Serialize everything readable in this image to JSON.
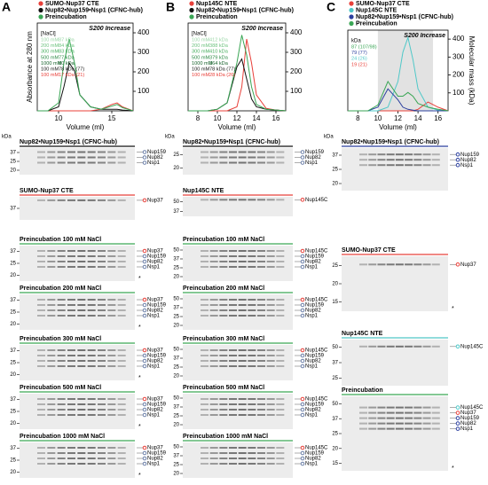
{
  "panel_labels": [
    "A",
    "B",
    "C"
  ],
  "chart_data": [
    {
      "type": "line",
      "xlabel": "Volume (ml)",
      "ylabel": "Absorbance at 280 nm",
      "column_label": "S200 Increase",
      "x": [
        8,
        9,
        10,
        10.5,
        11,
        11.5,
        12,
        13,
        14,
        15,
        15.5,
        16,
        17
      ],
      "xlim": [
        8,
        17
      ],
      "xticks": [
        10,
        15
      ],
      "ylim": [
        0,
        1.1
      ],
      "y2lim": [
        0,
        450
      ],
      "y2ticks": [
        100,
        200,
        300,
        400
      ],
      "series": [
        {
          "name": "SUMO-Nup37 CTE",
          "color": "#e8403a",
          "values": [
            0,
            0,
            0,
            0,
            0,
            0,
            0,
            0,
            0.02,
            0.08,
            0.1,
            0.05,
            0
          ]
        },
        {
          "name": "Nup82•Nup159•Nsp1 (CFNC-hub)",
          "color": "#111111",
          "values": [
            0,
            0,
            0.05,
            0.3,
            0.6,
            0.5,
            0.2,
            0.05,
            0.02,
            0.02,
            0.02,
            0.01,
            0
          ]
        },
        {
          "name": "Preincubation",
          "color": "#3aa655",
          "values": [
            0,
            0,
            0.1,
            0.6,
            0.9,
            0.6,
            0.2,
            0.05,
            0.02,
            0.06,
            0.08,
            0.04,
            0
          ]
        }
      ],
      "inset_header": "[NaCl]",
      "inset_rows": [
        {
          "salt": "100 mM",
          "mass": "87 kDa",
          "color": "#9ad6a6"
        },
        {
          "salt": "200 mM",
          "mass": "84 kDa",
          "color": "#6cc27e"
        },
        {
          "salt": "300 mM",
          "mass": "83 kDa",
          "color": "#45ad5c"
        },
        {
          "salt": "500 mM",
          "mass": "77 kDa",
          "color": "#2a8a43"
        },
        {
          "salt": "1000 mM",
          "mass": "80 kDa",
          "color": "#17622c"
        },
        {
          "salt": "100 mM",
          "mass": "78 kDa (77)",
          "color": "#111111"
        },
        {
          "salt": "100 mM",
          "mass": "17 kDa (21)",
          "color": "#e8403a"
        }
      ]
    },
    {
      "type": "line",
      "xlabel": "Volume (ml)",
      "column_label": "S200 Increase",
      "x": [
        7,
        8,
        9,
        10,
        11,
        12,
        12.5,
        13,
        13.5,
        14,
        15,
        16,
        17
      ],
      "xlim": [
        7,
        17
      ],
      "xticks": [
        8,
        10,
        12,
        14,
        16
      ],
      "ylim": [
        0,
        1.1
      ],
      "y2lim": [
        0,
        450
      ],
      "y2ticks": [
        100,
        200,
        300,
        400
      ],
      "series": [
        {
          "name": "Nup145C NTE",
          "color": "#e8403a",
          "values": [
            0,
            0,
            0,
            0,
            0,
            0.05,
            0.3,
            0.9,
            0.6,
            0.2,
            0.03,
            0.01,
            0
          ]
        },
        {
          "name": "Nup82•Nup159•Nsp1 (CFNC-hub)",
          "color": "#111111",
          "values": [
            0,
            0,
            0,
            0.02,
            0.1,
            0.55,
            0.65,
            0.4,
            0.15,
            0.05,
            0.02,
            0.01,
            0
          ]
        },
        {
          "name": "Preincubation",
          "color": "#3aa655",
          "values": [
            0,
            0,
            0,
            0.02,
            0.1,
            0.6,
            0.95,
            0.7,
            0.3,
            0.08,
            0.02,
            0.01,
            0
          ]
        }
      ],
      "inset_header": "[NaCl]",
      "inset_rows": [
        {
          "salt": "100 mM",
          "mass": "412 kDa",
          "color": "#9ad6a6"
        },
        {
          "salt": "200 mM",
          "mass": "388 kDa",
          "color": "#6cc27e"
        },
        {
          "salt": "300 mM",
          "mass": "410 kDa",
          "color": "#45ad5c"
        },
        {
          "salt": "500 mM",
          "mass": "379 kDa",
          "color": "#2a8a43"
        },
        {
          "salt": "1000 mM",
          "mass": "364 kDa",
          "color": "#17622c"
        },
        {
          "salt": "100 mM",
          "mass": "78 kDa (77)",
          "color": "#111111"
        },
        {
          "salt": "100 mM",
          "mass": "28 kDa (26)",
          "color": "#e8403a"
        }
      ]
    },
    {
      "type": "line",
      "xlabel": "Volume (ml)",
      "y2label": "Molecular mass (kDa)",
      "column_label": "S200 Increase",
      "x": [
        7,
        8,
        9,
        10,
        11,
        12,
        12.5,
        13,
        13.5,
        14,
        15,
        16,
        17
      ],
      "xlim": [
        7,
        17
      ],
      "xticks": [
        8,
        10,
        12,
        14,
        16
      ],
      "ylim": [
        0,
        1.1
      ],
      "y2lim": [
        0,
        450
      ],
      "y2ticks": [
        100,
        200,
        300,
        400
      ],
      "highlight_range": [
        10,
        15.5
      ],
      "series": [
        {
          "name": "SUMO-Nup37 CTE",
          "color": "#e8403a",
          "values": [
            0,
            0,
            0,
            0,
            0,
            0,
            0,
            0,
            0,
            0.02,
            0.12,
            0.05,
            0
          ]
        },
        {
          "name": "Nup145C NTE",
          "color": "#4fc8c8",
          "values": [
            0,
            0,
            0,
            0,
            0.05,
            0.4,
            0.8,
            1.0,
            0.7,
            0.3,
            0.05,
            0.01,
            0
          ]
        },
        {
          "name": "Nup82•Nup159•Nsp1 (CFNC-hub)",
          "color": "#2b3f9e",
          "values": [
            0,
            0,
            0,
            0.05,
            0.3,
            0.15,
            0.05,
            0.02,
            0.01,
            0,
            0,
            0,
            0
          ]
        },
        {
          "name": "Preincubation",
          "color": "#3aa655",
          "values": [
            0,
            0,
            0,
            0.08,
            0.4,
            0.2,
            0.2,
            0.25,
            0.2,
            0.1,
            0.05,
            0.02,
            0
          ]
        }
      ],
      "inset_header": "kDa",
      "inset_rows": [
        {
          "mass": "87 (107/98)",
          "color": "#3aa655"
        },
        {
          "mass": "79 (77)",
          "color": "#2b3f9e"
        },
        {
          "mass": "24 (26)",
          "color": "#4fc8c8"
        },
        {
          "mass": "19 (21)",
          "color": "#e8403a"
        }
      ]
    }
  ],
  "gels": [
    {
      "unit": "kDa",
      "items": [
        {
          "title": "Nup82•Nup159•Nsp1 (CFNC-hub)",
          "line_color": "#111111",
          "markers": [
            37,
            25,
            20
          ],
          "bands": [
            {
              "label": "Nup159",
              "color": "#6b7fa8"
            },
            {
              "label": "Nup82",
              "color": "#6b7fa8"
            },
            {
              "label": "Nsp1",
              "color": "#6b7fa8"
            }
          ]
        },
        {
          "title": "SUMO-Nup37 CTE",
          "line_color": "#e8403a",
          "markers": [
            37
          ],
          "bands": [
            {
              "label": "Nup37",
              "color": "#e8403a"
            }
          ]
        },
        {
          "title": "Preincubation 100 mM NaCl",
          "line_color": "#3aa655",
          "markers": [
            37,
            25,
            20
          ],
          "bands": [
            {
              "label": "Nup37",
              "color": "#e8403a"
            },
            {
              "label": "Nup159",
              "color": "#6b7fa8"
            },
            {
              "label": "Nup82",
              "color": "#6b7fa8"
            },
            {
              "label": "Nsp1",
              "color": "#6b7fa8"
            }
          ],
          "note": "*"
        },
        {
          "title": "Preincubation 200 mM NaCl",
          "line_color": "#3aa655",
          "markers": [
            37,
            25,
            20
          ],
          "bands": [
            {
              "label": "Nup37",
              "color": "#e8403a"
            },
            {
              "label": "Nup159",
              "color": "#6b7fa8"
            },
            {
              "label": "Nup82",
              "color": "#6b7fa8"
            },
            {
              "label": "Nsp1",
              "color": "#6b7fa8"
            }
          ],
          "note": "*"
        },
        {
          "title": "Preincubation 300 mM NaCl",
          "line_color": "#3aa655",
          "markers": [
            37,
            25,
            20
          ],
          "bands": [
            {
              "label": "Nup37",
              "color": "#e8403a"
            },
            {
              "label": "Nup159",
              "color": "#6b7fa8"
            },
            {
              "label": "Nup82",
              "color": "#6b7fa8"
            },
            {
              "label": "Nsp1",
              "color": "#6b7fa8"
            }
          ],
          "note": "*"
        },
        {
          "title": "Preincubation 500 mM NaCl",
          "line_color": "#3aa655",
          "markers": [
            37,
            25,
            20
          ],
          "bands": [
            {
              "label": "Nup37",
              "color": "#e8403a"
            },
            {
              "label": "Nup159",
              "color": "#6b7fa8"
            },
            {
              "label": "Nup82",
              "color": "#6b7fa8"
            },
            {
              "label": "Nsp1",
              "color": "#6b7fa8"
            }
          ],
          "note": "*"
        },
        {
          "title": "Preincubation 1000 mM NaCl",
          "line_color": "#3aa655",
          "markers": [
            37,
            25,
            20
          ],
          "bands": [
            {
              "label": "Nup37",
              "color": "#e8403a"
            },
            {
              "label": "Nup159",
              "color": "#6b7fa8"
            },
            {
              "label": "Nup82",
              "color": "#6b7fa8"
            },
            {
              "label": "Nsp1",
              "color": "#6b7fa8"
            }
          ],
          "note": "*"
        }
      ]
    },
    {
      "unit": "kDa",
      "items": [
        {
          "title": "Nup82•Nup159•Nsp1 (CFNC-hub)",
          "line_color": "#111111",
          "markers": [
            25,
            20
          ],
          "bands": [
            {
              "label": "Nup159",
              "color": "#6b7fa8"
            },
            {
              "label": "Nup82",
              "color": "#6b7fa8"
            },
            {
              "label": "Nsp1",
              "color": "#6b7fa8"
            }
          ]
        },
        {
          "title": "Nup145C NTE",
          "line_color": "#e8403a",
          "markers": [
            50,
            37
          ],
          "bands": [
            {
              "label": "Nup145C",
              "color": "#e8403a"
            }
          ]
        },
        {
          "title": "Preincubation 100 mM NaCl",
          "line_color": "#3aa655",
          "markers": [
            50,
            37,
            25,
            20
          ],
          "bands": [
            {
              "label": "Nup145C",
              "color": "#e8403a"
            },
            {
              "label": "Nup159",
              "color": "#6b7fa8"
            },
            {
              "label": "Nup82",
              "color": "#6b7fa8"
            },
            {
              "label": "Nsp1",
              "color": "#6b7fa8"
            }
          ]
        },
        {
          "title": "Preincubation 200 mM NaCl",
          "line_color": "#3aa655",
          "markers": [
            50,
            37,
            25,
            20
          ],
          "bands": [
            {
              "label": "Nup145C",
              "color": "#e8403a"
            },
            {
              "label": "Nup159",
              "color": "#6b7fa8"
            },
            {
              "label": "Nup82",
              "color": "#6b7fa8"
            },
            {
              "label": "Nsp1",
              "color": "#6b7fa8"
            }
          ]
        },
        {
          "title": "Preincubation 300 mM NaCl",
          "line_color": "#3aa655",
          "markers": [
            50,
            37,
            25,
            20
          ],
          "bands": [
            {
              "label": "Nup145C",
              "color": "#e8403a"
            },
            {
              "label": "Nup159",
              "color": "#6b7fa8"
            },
            {
              "label": "Nup82",
              "color": "#6b7fa8"
            },
            {
              "label": "Nsp1",
              "color": "#6b7fa8"
            }
          ]
        },
        {
          "title": "Preincubation 500 mM NaCl",
          "line_color": "#3aa655",
          "markers": [
            50,
            37,
            25,
            20
          ],
          "bands": [
            {
              "label": "Nup145C",
              "color": "#e8403a"
            },
            {
              "label": "Nup159",
              "color": "#6b7fa8"
            },
            {
              "label": "Nup82",
              "color": "#6b7fa8"
            },
            {
              "label": "Nsp1",
              "color": "#6b7fa8"
            }
          ]
        },
        {
          "title": "Preincubation 1000 mM NaCl",
          "line_color": "#3aa655",
          "markers": [
            50,
            37,
            25,
            20
          ],
          "bands": [
            {
              "label": "Nup145C",
              "color": "#e8403a"
            },
            {
              "label": "Nup159",
              "color": "#6b7fa8"
            },
            {
              "label": "Nup82",
              "color": "#6b7fa8"
            },
            {
              "label": "Nsp1",
              "color": "#6b7fa8"
            }
          ]
        }
      ]
    },
    {
      "unit": "kDa",
      "items": [
        {
          "title": "Nup82•Nup159•Nsp1 (CFNC-hub)",
          "line_color": "#2b3f9e",
          "markers": [
            37,
            25,
            20
          ],
          "bands": [
            {
              "label": "Nup159",
              "color": "#2b3f9e"
            },
            {
              "label": "Nup82",
              "color": "#2b3f9e"
            },
            {
              "label": "Nsp1",
              "color": "#2b3f9e"
            }
          ]
        },
        {
          "title": "SUMO-Nup37 CTE",
          "line_color": "#e8403a",
          "markers": [
            25,
            20,
            15
          ],
          "bands": [
            {
              "label": "Nup37",
              "color": "#e8403a"
            }
          ],
          "note": "*"
        },
        {
          "title": "Nup145C NTE",
          "line_color": "#4fc8c8",
          "markers": [
            50,
            37,
            25
          ],
          "bands": [
            {
              "label": "Nup145C",
              "color": "#4fc8c8"
            }
          ]
        },
        {
          "title": "Preincubation",
          "line_color": "#3aa655",
          "markers": [
            50,
            37,
            25,
            20,
            15
          ],
          "bands": [
            {
              "label": "Nup145C",
              "color": "#4fc8c8"
            },
            {
              "label": "Nup37",
              "color": "#e8403a"
            },
            {
              "label": "Nup159",
              "color": "#2b3f9e"
            },
            {
              "label": "Nup82",
              "color": "#2b3f9e"
            },
            {
              "label": "Nsp1",
              "color": "#2b3f9e"
            }
          ],
          "note": "*"
        }
      ]
    }
  ]
}
